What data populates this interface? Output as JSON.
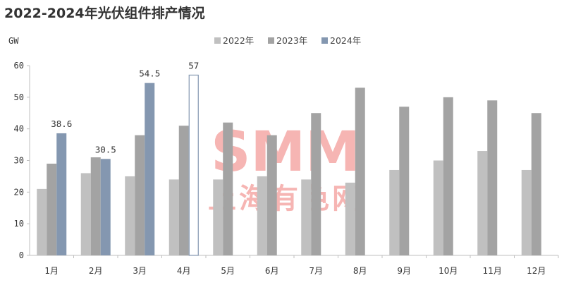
{
  "title": "2022-2024年光伏组件排产情况",
  "watermark": {
    "logo": "SMM",
    "text": "上海有色网"
  },
  "chart_data": {
    "type": "bar",
    "title": "2022-2024年光伏组件排产情况",
    "ylabel": "GW",
    "xlabel": "",
    "ylim": [
      0,
      60
    ],
    "yticks": [
      0,
      10,
      20,
      30,
      40,
      50,
      60
    ],
    "grid": false,
    "legend_position": "top",
    "categories": [
      "1月",
      "2月",
      "3月",
      "4月",
      "5月",
      "6月",
      "7月",
      "8月",
      "9月",
      "10月",
      "11月",
      "12月"
    ],
    "series": [
      {
        "name": "2022年",
        "color": "#c0c0c0",
        "values": [
          21,
          26,
          25,
          24,
          24,
          25,
          24,
          23,
          27,
          30,
          33,
          27
        ]
      },
      {
        "name": "2023年",
        "color": "#a3a3a3",
        "values": [
          29,
          31,
          38,
          41,
          42,
          38,
          45,
          53,
          47,
          50,
          49,
          45
        ]
      },
      {
        "name": "2024年",
        "color": "#8497b0",
        "values": [
          38.6,
          30.5,
          54.5,
          57,
          null,
          null,
          null,
          null,
          null,
          null,
          null,
          null
        ],
        "hollow_index": 3,
        "data_labels": [
          "38.6",
          "30.5",
          "54.5",
          "57"
        ]
      }
    ]
  }
}
